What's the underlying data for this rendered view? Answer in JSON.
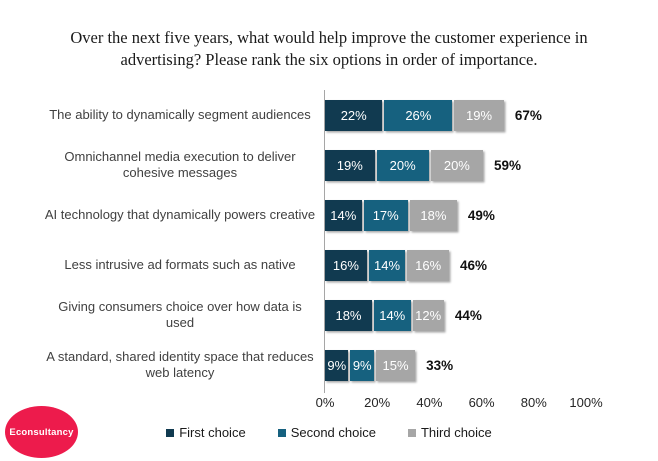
{
  "title": "Over the next five years, what would help improve the customer experience in advertising? Please rank the six options in order of importance.",
  "logo": {
    "text": "Econsultancy",
    "color": "#ed1b4c"
  },
  "chart_data": {
    "type": "bar",
    "stacked": true,
    "orientation": "horizontal",
    "title": "Over the next five years, what would help improve the customer experience in advertising? Please rank the six options in order of importance.",
    "categories": [
      "The ability to dynamically segment audiences",
      "Omnichannel media execution to deliver cohesive messages",
      "AI technology that dynamically powers creative",
      "Less intrusive ad formats such as native",
      "Giving consumers choice over how data is used",
      "A standard, shared identity space that reduces web latency"
    ],
    "series": [
      {
        "name": "First choice",
        "color": "#113a50",
        "values": [
          22,
          19,
          14,
          16,
          18,
          9
        ]
      },
      {
        "name": "Second choice",
        "color": "#16617f",
        "values": [
          26,
          20,
          17,
          14,
          14,
          9
        ]
      },
      {
        "name": "Third choice",
        "color": "#a6a6a6",
        "values": [
          19,
          20,
          18,
          16,
          12,
          15
        ]
      }
    ],
    "totals": [
      67,
      59,
      49,
      46,
      44,
      33
    ],
    "xlim": [
      0,
      100
    ],
    "x_tick_labels": [
      "0%",
      "20%",
      "40%",
      "60%",
      "80%",
      "100%"
    ],
    "grid": false,
    "legend_position": "bottom"
  }
}
